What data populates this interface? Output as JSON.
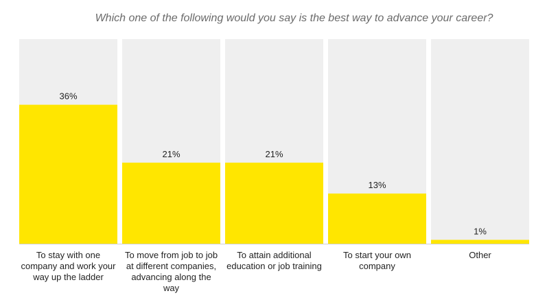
{
  "chart_data": {
    "type": "bar",
    "title": "Which one of the following would you say is the best way to advance your career?",
    "categories": [
      [
        "To stay with one",
        "company and work your",
        "way up the ladder"
      ],
      [
        "To move from job to job",
        "at different companies,",
        "advancing along the",
        "way"
      ],
      [
        "To attain additional",
        "education or job training"
      ],
      [
        "To start your own",
        "company"
      ],
      [
        "Other"
      ]
    ],
    "values": [
      36,
      21,
      21,
      13,
      1
    ],
    "value_labels": [
      "36%",
      "21%",
      "21%",
      "13%",
      "1%"
    ],
    "ylim": [
      0,
      53
    ],
    "xlabel": "",
    "ylabel": "",
    "grid": false,
    "legend": "none",
    "colors": {
      "bar": "#FFE600",
      "background_column": "#EFEFEF",
      "baseline": "#D0D0D0"
    }
  }
}
